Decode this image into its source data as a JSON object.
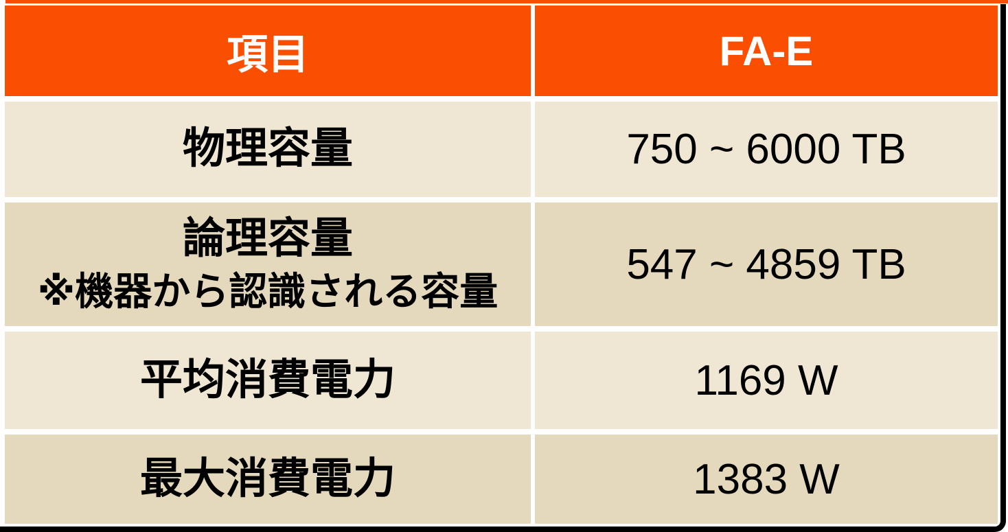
{
  "table": {
    "header": {
      "item_column": "項目",
      "model_column": "FA-E"
    },
    "rows": [
      {
        "label": "物理容量",
        "value": "750 ~ 6000 TB"
      },
      {
        "label": "論理容量",
        "note": "※機器から認識される容量",
        "value": "547 ~ 4859 TB"
      },
      {
        "label": "平均消費電力",
        "value": "1169 W"
      },
      {
        "label": "最大消費電力",
        "value": "1383 W"
      }
    ]
  },
  "colors": {
    "header_bg": "#FA4E00",
    "header_text": "#FFFFFF",
    "row_light_bg": "#EFE6D3",
    "row_dark_bg": "#E4D8BD",
    "body_text": "#000000",
    "frame_border": "#000000",
    "top_strip": "#FA4E00"
  }
}
